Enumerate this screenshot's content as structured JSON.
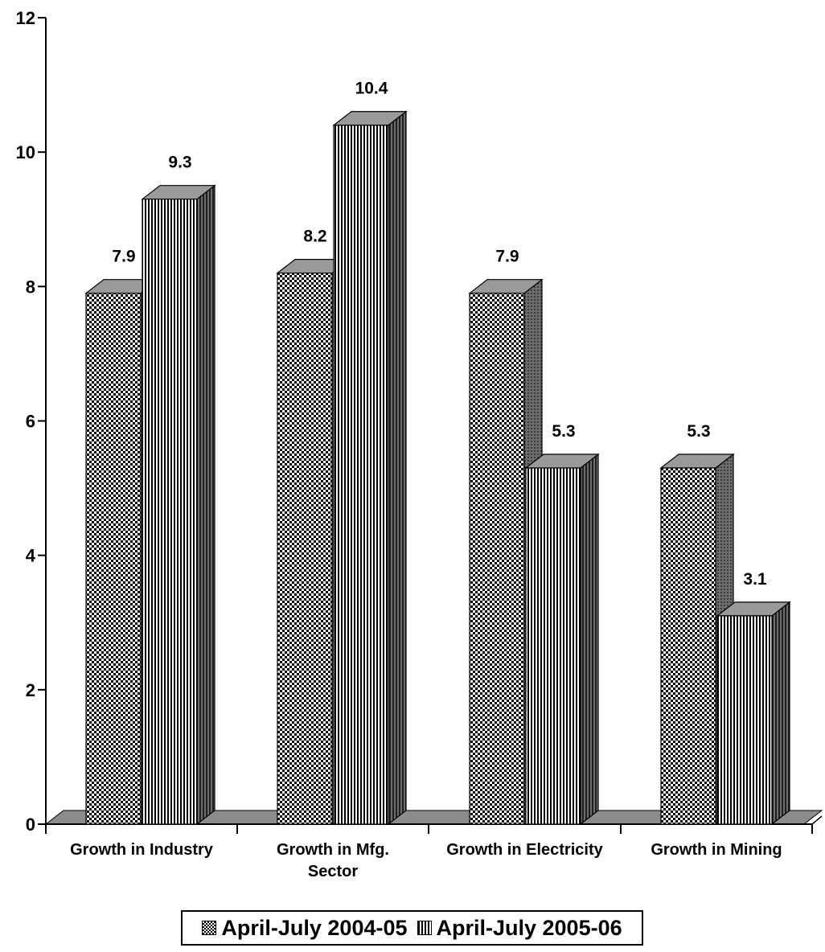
{
  "chart_data": {
    "type": "bar",
    "categories": [
      [
        "Growth in Industry"
      ],
      [
        "Growth in Mfg.",
        "Sector"
      ],
      [
        "Growth in Electricity"
      ],
      [
        "Growth in Mining"
      ]
    ],
    "series": [
      {
        "name": "April-July 2004-05",
        "values": [
          7.9,
          8.2,
          7.9,
          5.3
        ],
        "pattern": "checker"
      },
      {
        "name": "April-July 2005-06",
        "values": [
          9.3,
          10.4,
          5.3,
          3.1
        ],
        "pattern": "vertical-lines"
      }
    ],
    "value_labels": [
      [
        "7.9",
        "8.2",
        "7.9",
        "5.3"
      ],
      [
        "9.3",
        "10.4",
        "5.3",
        "3.1"
      ]
    ],
    "ylim": [
      0,
      12
    ],
    "y_ticks": [
      "0",
      "2",
      "4",
      "6",
      "8",
      "10",
      "12"
    ],
    "title": "",
    "xlabel": "",
    "ylabel": "",
    "grid": false,
    "legend_position": "bottom",
    "style": "3d",
    "colors": {
      "bar_front": "#ffffff",
      "bar_pattern": "#000000",
      "bar_top": "#9a9a9a",
      "bar_side": "#6e6e6e",
      "floor": "#8c8c8c"
    }
  }
}
